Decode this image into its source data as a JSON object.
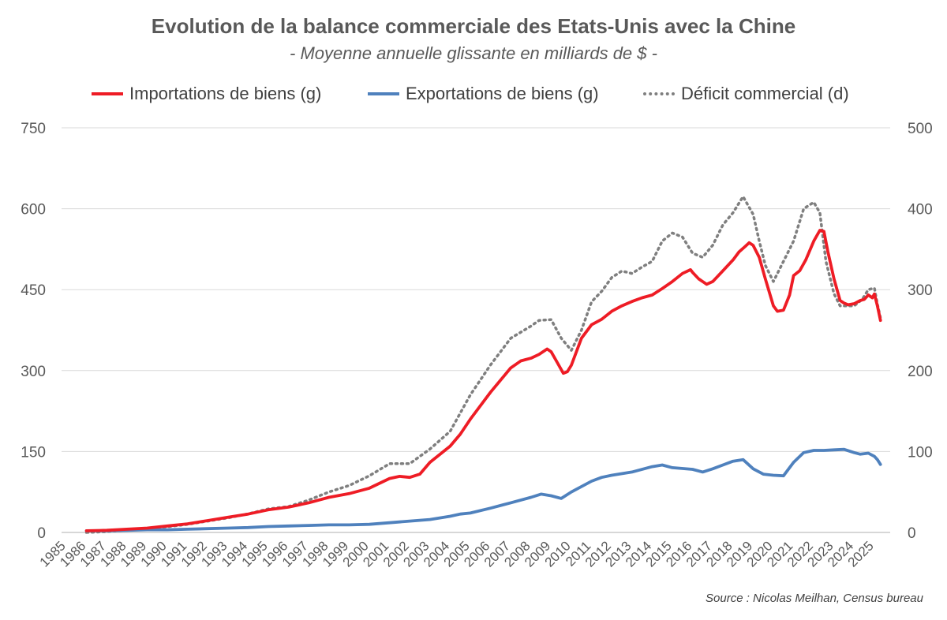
{
  "title": "Evolution de la balance commerciale des Etats-Unis avec la Chine",
  "subtitle": "- Moyenne annuelle glissante en milliards de $ -",
  "source": "Source : Nicolas Meilhan, Census bureau",
  "chart_data": {
    "type": "line",
    "title": "Evolution de la balance commerciale des Etats-Unis avec la Chine",
    "subtitle": "- Moyenne annuelle glissante en milliards de $ -",
    "x_ticks": [
      "1985",
      "1986",
      "1987",
      "1988",
      "1989",
      "1990",
      "1991",
      "1992",
      "1993",
      "1994",
      "1995",
      "1996",
      "1997",
      "1998",
      "1999",
      "2000",
      "2001",
      "2002",
      "2003",
      "2004",
      "2005",
      "2006",
      "2007",
      "2008",
      "2009",
      "2010",
      "2011",
      "2012",
      "2013",
      "2014",
      "2015",
      "2016",
      "2017",
      "2018",
      "2019",
      "2020",
      "2021",
      "2022",
      "2023",
      "2024",
      "2025"
    ],
    "y_left": {
      "min": 0,
      "max": 750,
      "ticks": [
        0,
        150,
        300,
        450,
        600,
        750
      ]
    },
    "y_right": {
      "min": 0,
      "max": 500,
      "ticks": [
        0,
        100,
        200,
        300,
        400,
        500
      ]
    },
    "grid": true,
    "legend_position": "top",
    "series": [
      {
        "name": "Importations de biens (g)",
        "axis": "left",
        "color": "#ee1c25",
        "style": "solid",
        "x": [
          1986.0,
          1987,
          1988,
          1989,
          1990,
          1991,
          1992,
          1993,
          1994,
          1995,
          1996,
          1997,
          1998,
          1999,
          2000,
          2001,
          2001.5,
          2002,
          2002.5,
          2003,
          2004,
          2004.5,
          2005,
          2006,
          2007,
          2007.5,
          2008,
          2008.4,
          2008.8,
          2009,
          2009.3,
          2009.6,
          2009.8,
          2010,
          2010.5,
          2011,
          2011.5,
          2012,
          2012.5,
          2013,
          2013.5,
          2014,
          2014.5,
          2015,
          2015.5,
          2015.9,
          2016,
          2016.3,
          2016.7,
          2017,
          2017.5,
          2018,
          2018.3,
          2018.6,
          2018.8,
          2019,
          2019.3,
          2019.6,
          2020,
          2020.2,
          2020.5,
          2020.8,
          2021,
          2021.3,
          2021.6,
          2022,
          2022.3,
          2022.5,
          2022.7,
          2023,
          2023.3,
          2023.5,
          2023.7,
          2024,
          2024.3,
          2024.5,
          2024.7,
          2024.9,
          2025,
          2025.15,
          2025.3
        ],
        "values": [
          3,
          4,
          6,
          8,
          12,
          16,
          22,
          28,
          34,
          42,
          47,
          55,
          65,
          72,
          82,
          100,
          104,
          102,
          108,
          130,
          160,
          182,
          210,
          260,
          305,
          318,
          323,
          330,
          340,
          335,
          315,
          295,
          298,
          310,
          360,
          385,
          395,
          410,
          420,
          428,
          435,
          440,
          452,
          465,
          480,
          487,
          482,
          470,
          460,
          465,
          485,
          505,
          520,
          530,
          537,
          532,
          510,
          470,
          420,
          410,
          412,
          440,
          476,
          485,
          505,
          540,
          560,
          558,
          520,
          470,
          430,
          425,
          422,
          424,
          430,
          432,
          440,
          435,
          442,
          420,
          393
        ]
      },
      {
        "name": "Exportations de biens (g)",
        "axis": "left",
        "color": "#4f81bd",
        "style": "solid",
        "x": [
          1986.0,
          1987,
          1988,
          1989,
          1990,
          1991,
          1992,
          1993,
          1994,
          1995,
          1996,
          1997,
          1998,
          1999,
          2000,
          2001,
          2002,
          2003,
          2004,
          2004.5,
          2005,
          2006,
          2007,
          2008,
          2008.5,
          2009,
          2009.5,
          2010,
          2011,
          2011.5,
          2012,
          2013,
          2014,
          2014.5,
          2015,
          2016,
          2016.5,
          2017,
          2017.5,
          2018,
          2018.5,
          2019,
          2019.5,
          2020,
          2020.5,
          2021,
          2021.5,
          2022,
          2022.5,
          2023,
          2023.5,
          2024,
          2024.3,
          2024.7,
          2025,
          2025.15,
          2025.3
        ],
        "values": [
          3,
          3,
          4,
          5,
          5,
          6,
          7,
          8,
          9,
          11,
          12,
          13,
          14,
          14,
          15,
          18,
          21,
          24,
          30,
          34,
          36,
          45,
          55,
          65,
          71,
          68,
          63,
          75,
          95,
          102,
          106,
          112,
          122,
          125,
          120,
          117,
          112,
          118,
          125,
          132,
          135,
          118,
          108,
          106,
          105,
          130,
          148,
          152,
          152,
          153,
          154,
          148,
          145,
          147,
          141,
          135,
          126
        ]
      },
      {
        "name": "Déficit commercial (d)",
        "axis": "right",
        "color": "#7f7f7f",
        "style": "dotted",
        "x": [
          1986.0,
          1987,
          1988,
          1989,
          1990,
          1991,
          1992,
          1993,
          1994,
          1995,
          1996,
          1997,
          1998,
          1999,
          2000,
          2001,
          2002,
          2003,
          2004,
          2005,
          2006,
          2007,
          2008,
          2008.4,
          2009,
          2009.5,
          2010,
          2010.5,
          2011,
          2011.5,
          2012,
          2012.5,
          2013,
          2013.5,
          2014,
          2014.5,
          2015,
          2015.5,
          2016,
          2016.5,
          2017,
          2017.5,
          2018,
          2018.5,
          2019,
          2019.3,
          2019.6,
          2020,
          2020.5,
          2021,
          2021.5,
          2022,
          2022.3,
          2022.6,
          2023,
          2023.3,
          2023.6,
          2024,
          2024.4,
          2024.7,
          2025,
          2025.15,
          2025.3
        ],
        "values": [
          0,
          1,
          3,
          5,
          7,
          10,
          14,
          18,
          23,
          29,
          32,
          40,
          50,
          58,
          70,
          85,
          85,
          103,
          125,
          170,
          207,
          240,
          255,
          262,
          263,
          240,
          225,
          250,
          285,
          298,
          315,
          323,
          320,
          328,
          335,
          360,
          370,
          365,
          345,
          340,
          355,
          380,
          395,
          415,
          393,
          360,
          330,
          310,
          335,
          360,
          400,
          408,
          395,
          335,
          295,
          280,
          280,
          280,
          288,
          300,
          302,
          282,
          265
        ]
      }
    ]
  }
}
